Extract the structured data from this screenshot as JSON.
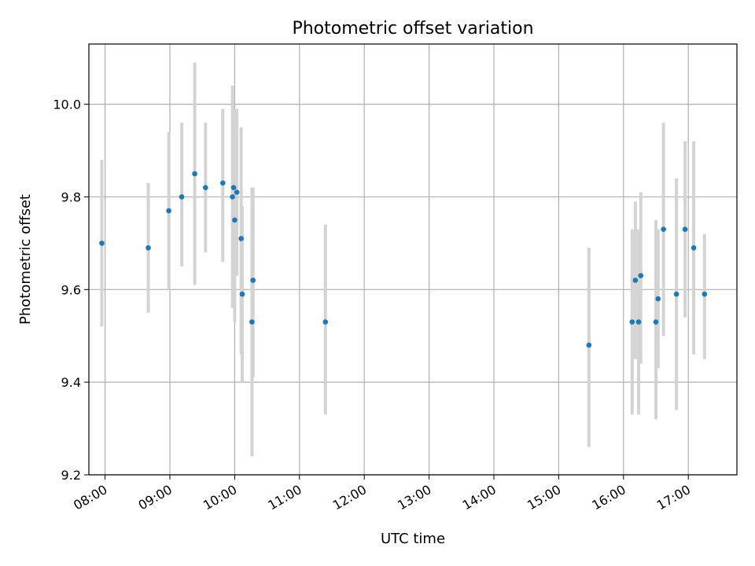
{
  "chart_data": {
    "type": "scatter",
    "title": "Photometric offset variation",
    "xlabel": "UTC time",
    "ylabel": "Photometric offset",
    "grid": true,
    "legend": "none",
    "xlim": [
      "07:45",
      "17:45"
    ],
    "ylim": [
      9.2,
      10.13
    ],
    "x_ticks": [
      "08:00",
      "09:00",
      "10:00",
      "11:00",
      "12:00",
      "13:00",
      "14:00",
      "15:00",
      "16:00",
      "17:00"
    ],
    "y_ticks": [
      "9.2",
      "9.4",
      "9.6",
      "9.8",
      "10.0"
    ],
    "marker_color": "#1f77b4",
    "errorbar_color": "#d3d3d3",
    "points": [
      {
        "t": "07:57",
        "y": 9.7,
        "lo": 9.52,
        "hi": 9.88
      },
      {
        "t": "08:40",
        "y": 9.69,
        "lo": 9.55,
        "hi": 9.83
      },
      {
        "t": "08:59",
        "y": 9.77,
        "lo": 9.6,
        "hi": 9.94
      },
      {
        "t": "09:11",
        "y": 9.8,
        "lo": 9.65,
        "hi": 9.96
      },
      {
        "t": "09:23",
        "y": 9.85,
        "lo": 9.61,
        "hi": 10.09
      },
      {
        "t": "09:33",
        "y": 9.82,
        "lo": 9.68,
        "hi": 9.96
      },
      {
        "t": "09:49",
        "y": 9.83,
        "lo": 9.66,
        "hi": 9.99
      },
      {
        "t": "09:58",
        "y": 9.8,
        "lo": 9.56,
        "hi": 10.04
      },
      {
        "t": "09:59",
        "y": 9.82,
        "lo": 9.65,
        "hi": 9.99
      },
      {
        "t": "10:00",
        "y": 9.75,
        "lo": 9.53,
        "hi": 9.99
      },
      {
        "t": "10:02",
        "y": 9.81,
        "lo": 9.63,
        "hi": 9.99
      },
      {
        "t": "10:06",
        "y": 9.71,
        "lo": 9.46,
        "hi": 9.95
      },
      {
        "t": "10:07",
        "y": 9.59,
        "lo": 9.4,
        "hi": 9.78
      },
      {
        "t": "10:16",
        "y": 9.53,
        "lo": 9.24,
        "hi": 9.82
      },
      {
        "t": "10:17",
        "y": 9.62,
        "lo": 9.41,
        "hi": 9.82
      },
      {
        "t": "11:24",
        "y": 9.53,
        "lo": 9.33,
        "hi": 9.74
      },
      {
        "t": "15:28",
        "y": 9.48,
        "lo": 9.26,
        "hi": 9.69
      },
      {
        "t": "16:08",
        "y": 9.53,
        "lo": 9.33,
        "hi": 9.73
      },
      {
        "t": "16:11",
        "y": 9.62,
        "lo": 9.45,
        "hi": 9.79
      },
      {
        "t": "16:14",
        "y": 9.53,
        "lo": 9.33,
        "hi": 9.73
      },
      {
        "t": "16:16",
        "y": 9.63,
        "lo": 9.44,
        "hi": 9.81
      },
      {
        "t": "16:30",
        "y": 9.53,
        "lo": 9.32,
        "hi": 9.75
      },
      {
        "t": "16:32",
        "y": 9.58,
        "lo": 9.43,
        "hi": 9.73
      },
      {
        "t": "16:37",
        "y": 9.73,
        "lo": 9.5,
        "hi": 9.96
      },
      {
        "t": "16:49",
        "y": 9.59,
        "lo": 9.34,
        "hi": 9.84
      },
      {
        "t": "16:57",
        "y": 9.73,
        "lo": 9.54,
        "hi": 9.92
      },
      {
        "t": "17:05",
        "y": 9.69,
        "lo": 9.46,
        "hi": 9.92
      },
      {
        "t": "17:15",
        "y": 9.59,
        "lo": 9.45,
        "hi": 9.72
      }
    ]
  }
}
